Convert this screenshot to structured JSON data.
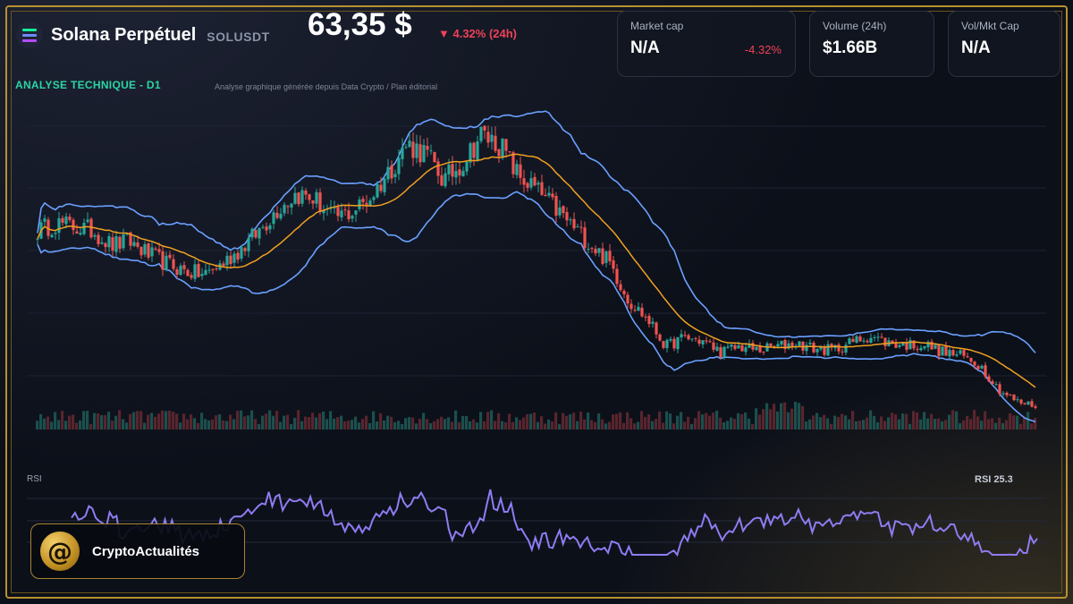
{
  "header": {
    "title": "Solana Perpétuel",
    "ticker": "SOLUSDT",
    "price": "63,35 $",
    "change": "▼ 4.32% (24h)"
  },
  "cards": [
    {
      "label": "Market cap",
      "value": "N/A",
      "sub": "-4.32%"
    },
    {
      "label": "Volume (24h)",
      "value": "$1.66B",
      "sub": ""
    },
    {
      "label": "Vol/Mkt Cap",
      "value": "N/A",
      "sub": ""
    }
  ],
  "analysis": {
    "title": "ANALYSE TECHNIQUE - D1",
    "subtitle": "Analyse graphique générée depuis Data Crypto / Plan éditorial"
  },
  "rsi": {
    "label": "RSI",
    "value_label": "RSI 25.3"
  },
  "brand": {
    "name": "CryptoActualités",
    "icon": "@"
  },
  "colors": {
    "up": "#26a69a",
    "down": "#ef5350",
    "bollinger": "#6aa0ff",
    "ma": "#f0a020",
    "rsi": "#8f7cf2",
    "accent": "#2dd4a6",
    "gold": "#b8912f"
  },
  "chart_data": {
    "type": "line",
    "title": "ANALYSE TECHNIQUE - D1",
    "series": [
      {
        "name": "",
        "values": [
          158,
          162,
          160,
          158,
          150,
          152,
          145,
          140,
          136,
          134,
          140,
          148,
          158,
          170,
          178,
          175,
          165,
          168,
          176,
          190,
          205,
          200,
          185,
          195,
          210,
          205,
          188,
          180,
          170,
          160,
          150,
          140,
          120,
          110,
          95,
          100,
          98,
          92,
          95,
          93,
          95,
          97,
          94,
          93,
          97,
          101,
          97,
          96,
          96,
          92,
          90,
          85,
          72,
          65,
          63
        ]
      }
    ],
    "ylim": [
      50,
      220
    ]
  }
}
